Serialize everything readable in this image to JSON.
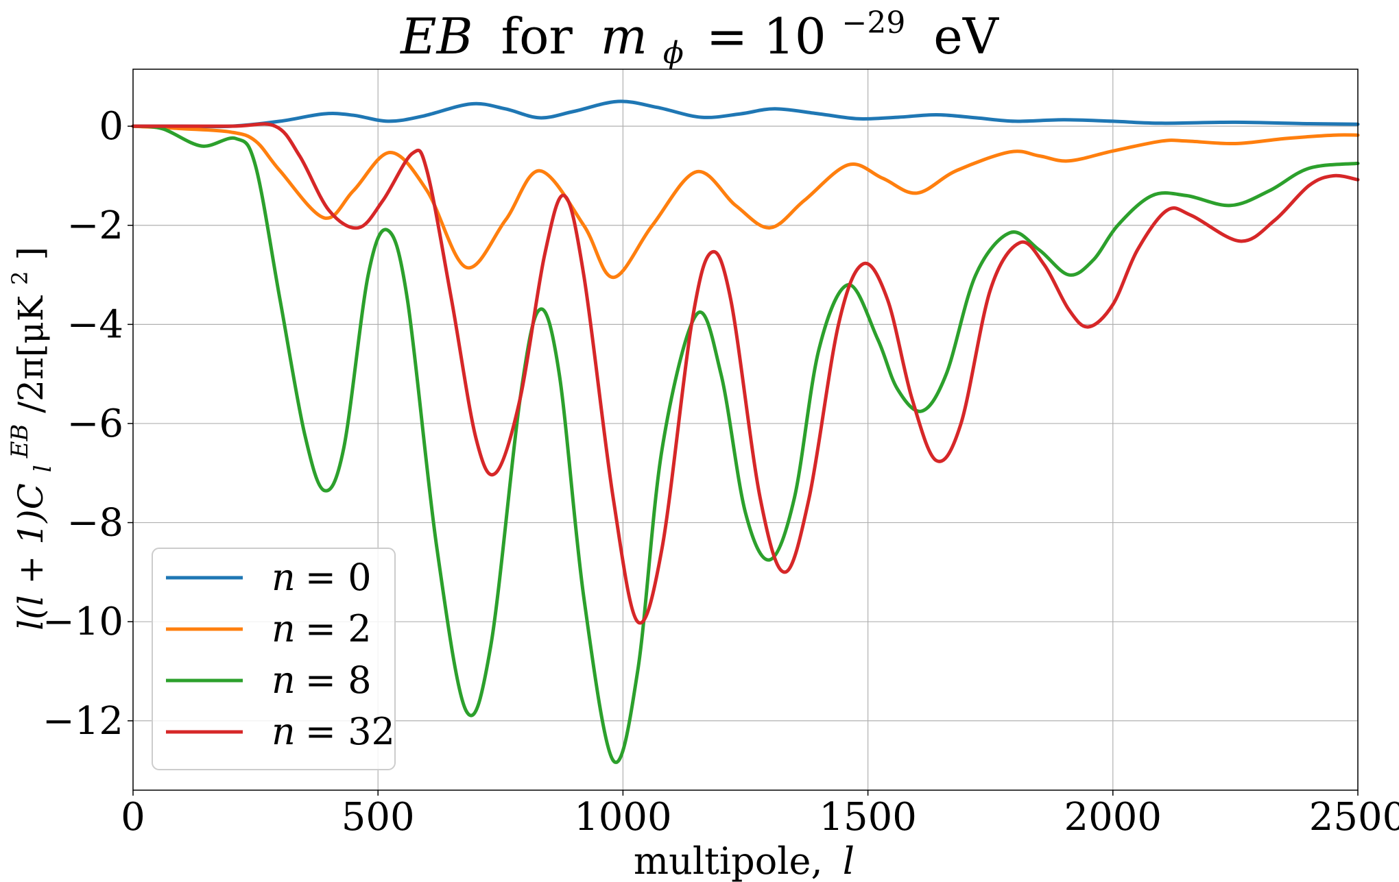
{
  "chart_data": {
    "type": "line",
    "title_parts": {
      "a": "EB",
      "b": "for",
      "c": "m",
      "d": "ϕ",
      "e": "= 10",
      "f": "−29",
      "g": "eV"
    },
    "title": "EB for m_ϕ = 10^−29 eV",
    "xlabel_parts": {
      "a": "multipole,",
      "b": "l"
    },
    "xlabel": "multipole, l",
    "ylabel_parts": {
      "a": "l(l + 1)C",
      "b": "l",
      "c": "EB",
      "d": "/2π[μK",
      "e": "2",
      "f": "]"
    },
    "ylabel": "l(l + 1)C_l^EB/2π[μK^2]",
    "xlim": [
      0,
      2500
    ],
    "ylim": [
      -13.4,
      1.15
    ],
    "xticks": [
      0,
      500,
      1000,
      1500,
      2000,
      2500
    ],
    "xtick_labels": [
      "0",
      "500",
      "1000",
      "1500",
      "2000",
      "2500"
    ],
    "yticks": [
      0,
      -2,
      -4,
      -6,
      -8,
      -10,
      -12
    ],
    "ytick_labels": [
      "0",
      "−2",
      "−4",
      "−6",
      "−8",
      "−10",
      "−12"
    ],
    "grid": true,
    "legend_position": "lower-left",
    "series": [
      {
        "name": "n = 0",
        "label_var": "n",
        "label_val": "= 0",
        "color": "#1f77b4",
        "points": [
          [
            0,
            0
          ],
          [
            100,
            0
          ],
          [
            200,
            0
          ],
          [
            300,
            0.1
          ],
          [
            390,
            0.25
          ],
          [
            450,
            0.22
          ],
          [
            520,
            0.1
          ],
          [
            590,
            0.2
          ],
          [
            690,
            0.45
          ],
          [
            760,
            0.35
          ],
          [
            830,
            0.17
          ],
          [
            900,
            0.3
          ],
          [
            990,
            0.5
          ],
          [
            1070,
            0.38
          ],
          [
            1160,
            0.18
          ],
          [
            1240,
            0.25
          ],
          [
            1310,
            0.35
          ],
          [
            1400,
            0.25
          ],
          [
            1480,
            0.15
          ],
          [
            1560,
            0.18
          ],
          [
            1640,
            0.23
          ],
          [
            1720,
            0.17
          ],
          [
            1800,
            0.1
          ],
          [
            1900,
            0.13
          ],
          [
            2000,
            0.1
          ],
          [
            2100,
            0.06
          ],
          [
            2250,
            0.08
          ],
          [
            2400,
            0.05
          ],
          [
            2500,
            0.04
          ]
        ]
      },
      {
        "name": "n = 2",
        "label_var": "n",
        "label_val": "= 2",
        "color": "#ff7f0e",
        "points": [
          [
            0,
            0
          ],
          [
            100,
            -0.05
          ],
          [
            200,
            -0.12
          ],
          [
            250,
            -0.3
          ],
          [
            300,
            -0.9
          ],
          [
            390,
            -1.85
          ],
          [
            450,
            -1.3
          ],
          [
            525,
            -0.53
          ],
          [
            600,
            -1.3
          ],
          [
            680,
            -2.85
          ],
          [
            760,
            -1.9
          ],
          [
            830,
            -0.9
          ],
          [
            920,
            -2.0
          ],
          [
            980,
            -3.05
          ],
          [
            1060,
            -2.0
          ],
          [
            1150,
            -0.92
          ],
          [
            1230,
            -1.6
          ],
          [
            1300,
            -2.05
          ],
          [
            1370,
            -1.5
          ],
          [
            1460,
            -0.78
          ],
          [
            1530,
            -1.05
          ],
          [
            1600,
            -1.35
          ],
          [
            1680,
            -0.9
          ],
          [
            1790,
            -0.52
          ],
          [
            1850,
            -0.6
          ],
          [
            1910,
            -0.7
          ],
          [
            2000,
            -0.5
          ],
          [
            2100,
            -0.3
          ],
          [
            2150,
            -0.3
          ],
          [
            2250,
            -0.35
          ],
          [
            2350,
            -0.25
          ],
          [
            2450,
            -0.18
          ],
          [
            2500,
            -0.18
          ]
        ]
      },
      {
        "name": "n = 8",
        "label_var": "n",
        "label_val": "= 8",
        "color": "#2ca02c",
        "points": [
          [
            0,
            0
          ],
          [
            60,
            -0.05
          ],
          [
            140,
            -0.4
          ],
          [
            210,
            -0.25
          ],
          [
            250,
            -0.8
          ],
          [
            300,
            -3.5
          ],
          [
            350,
            -6.2
          ],
          [
            390,
            -7.35
          ],
          [
            430,
            -6.5
          ],
          [
            480,
            -3.0
          ],
          [
            520,
            -2.1
          ],
          [
            560,
            -3.5
          ],
          [
            620,
            -8.5
          ],
          [
            680,
            -11.8
          ],
          [
            730,
            -10.5
          ],
          [
            790,
            -5.5
          ],
          [
            830,
            -3.7
          ],
          [
            870,
            -5.0
          ],
          [
            920,
            -9.5
          ],
          [
            980,
            -12.8
          ],
          [
            1030,
            -11.0
          ],
          [
            1080,
            -6.5
          ],
          [
            1150,
            -3.8
          ],
          [
            1200,
            -5.0
          ],
          [
            1250,
            -7.8
          ],
          [
            1300,
            -8.75
          ],
          [
            1350,
            -7.5
          ],
          [
            1400,
            -4.5
          ],
          [
            1460,
            -3.2
          ],
          [
            1520,
            -4.3
          ],
          [
            1560,
            -5.3
          ],
          [
            1610,
            -5.75
          ],
          [
            1660,
            -5.0
          ],
          [
            1720,
            -3.0
          ],
          [
            1790,
            -2.15
          ],
          [
            1850,
            -2.5
          ],
          [
            1910,
            -3.0
          ],
          [
            1960,
            -2.7
          ],
          [
            2010,
            -2.0
          ],
          [
            2080,
            -1.4
          ],
          [
            2150,
            -1.4
          ],
          [
            2240,
            -1.6
          ],
          [
            2320,
            -1.3
          ],
          [
            2400,
            -0.85
          ],
          [
            2500,
            -0.75
          ]
        ]
      },
      {
        "name": "n = 32",
        "label_var": "n",
        "label_val": "= 32",
        "color": "#d62728",
        "points": [
          [
            0,
            0
          ],
          [
            200,
            0
          ],
          [
            290,
            0
          ],
          [
            340,
            -0.6
          ],
          [
            400,
            -1.7
          ],
          [
            460,
            -2.05
          ],
          [
            510,
            -1.5
          ],
          [
            570,
            -0.55
          ],
          [
            600,
            -0.9
          ],
          [
            650,
            -3.5
          ],
          [
            700,
            -6.3
          ],
          [
            740,
            -7.0
          ],
          [
            790,
            -5.5
          ],
          [
            840,
            -2.6
          ],
          [
            880,
            -1.4
          ],
          [
            920,
            -3.0
          ],
          [
            980,
            -7.5
          ],
          [
            1030,
            -10.0
          ],
          [
            1080,
            -8.5
          ],
          [
            1140,
            -4.0
          ],
          [
            1180,
            -2.55
          ],
          [
            1220,
            -3.5
          ],
          [
            1280,
            -7.5
          ],
          [
            1330,
            -9.0
          ],
          [
            1380,
            -7.5
          ],
          [
            1440,
            -4.0
          ],
          [
            1490,
            -2.78
          ],
          [
            1540,
            -3.5
          ],
          [
            1590,
            -5.5
          ],
          [
            1640,
            -6.75
          ],
          [
            1690,
            -6.0
          ],
          [
            1750,
            -3.3
          ],
          [
            1810,
            -2.35
          ],
          [
            1860,
            -2.8
          ],
          [
            1910,
            -3.7
          ],
          [
            1950,
            -4.05
          ],
          [
            2000,
            -3.6
          ],
          [
            2050,
            -2.5
          ],
          [
            2110,
            -1.7
          ],
          [
            2160,
            -1.8
          ],
          [
            2260,
            -2.32
          ],
          [
            2330,
            -1.9
          ],
          [
            2400,
            -1.2
          ],
          [
            2450,
            -1.0
          ],
          [
            2500,
            -1.08
          ]
        ]
      }
    ]
  }
}
